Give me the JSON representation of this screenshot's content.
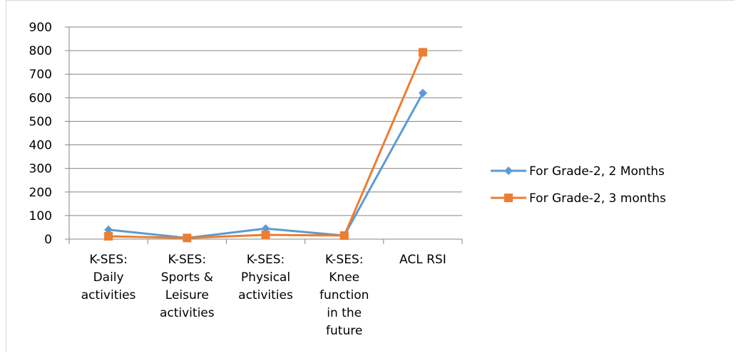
{
  "chart_data": {
    "type": "line",
    "title": "",
    "xlabel": "",
    "ylabel": "",
    "ylim": [
      0,
      900
    ],
    "yticks": [
      0,
      100,
      200,
      300,
      400,
      500,
      600,
      700,
      800,
      900
    ],
    "grid": true,
    "legend_position": "right",
    "categories": [
      [
        "K-SES:",
        "Daily",
        "activities"
      ],
      [
        "K-SES:",
        "Sports &",
        "Leisure",
        "activities"
      ],
      [
        "K-SES:",
        "Physical",
        "activities"
      ],
      [
        "K-SES:",
        "Knee",
        "function",
        "in the",
        "future"
      ],
      [
        "ACL RSI"
      ]
    ],
    "series": [
      {
        "name": "For Grade-2, 2 Months",
        "color": "#5b9bd5",
        "marker": "diamond",
        "values": [
          40,
          5,
          45,
          15,
          620
        ]
      },
      {
        "name": "For Grade-2, 3 months",
        "color": "#ed7d31",
        "marker": "square",
        "values": [
          12,
          5,
          18,
          15,
          793
        ]
      }
    ]
  }
}
